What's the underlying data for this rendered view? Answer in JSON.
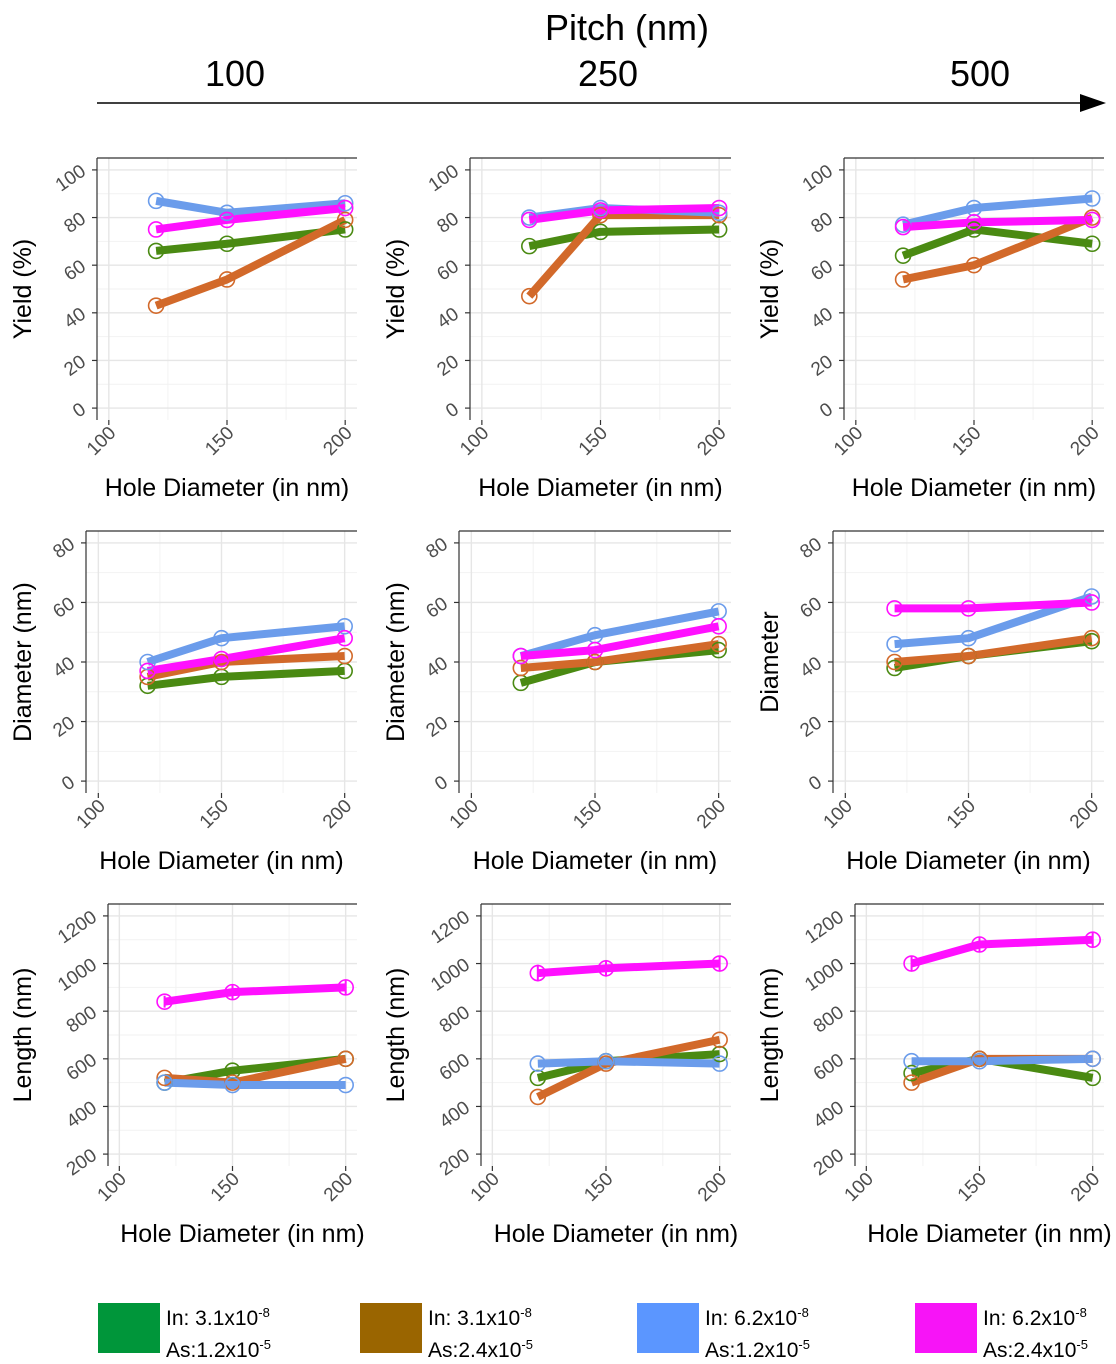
{
  "header": {
    "title": "Pitch (nm)",
    "pitches": [
      "100",
      "250",
      "500"
    ]
  },
  "colors": {
    "green": "#4a8a12",
    "orange": "#d2692a",
    "blue": "#6b9ceb",
    "magenta": "#ff10ff",
    "legend_green": "#00963a",
    "legend_orange": "#9a6500",
    "legend_blue": "#5b96ff",
    "legend_magenta": "#f714f7"
  },
  "legend": [
    {
      "in_base": "In: 3.1x10",
      "in_exp": "-8",
      "as_base": "As:1.2x10",
      "as_exp": "-5",
      "color": "#00963a"
    },
    {
      "in_base": "In: 3.1x10",
      "in_exp": "-8",
      "as_base": "As:2.4x10",
      "as_exp": "-5",
      "color": "#9a6500"
    },
    {
      "in_base": "In: 6.2x10",
      "in_exp": "-8",
      "as_base": "As:1.2x10",
      "as_exp": "-5",
      "color": "#5b96ff"
    },
    {
      "in_base": "In: 6.2x10",
      "in_exp": "-8",
      "as_base": "As:2.4x10",
      "as_exp": "-5",
      "color": "#f714f7"
    }
  ],
  "chart_data": [
    {
      "type": "line",
      "row": "yield",
      "pitch": "100",
      "xlabel": "Hole Diameter (in nm)",
      "ylabel": "Yield (%)",
      "x": [
        120,
        150,
        200
      ],
      "xticks": [
        100,
        150,
        200
      ],
      "xlim": [
        95,
        205
      ],
      "yticks": [
        0,
        20,
        40,
        60,
        80,
        100
      ],
      "ylim": [
        -5,
        105
      ],
      "series": [
        {
          "color": "#4a8a12",
          "values": [
            66,
            69,
            75
          ]
        },
        {
          "color": "#d2692a",
          "values": [
            43,
            54,
            79
          ]
        },
        {
          "color": "#6b9ceb",
          "values": [
            87,
            82,
            86
          ]
        },
        {
          "color": "#ff10ff",
          "values": [
            75,
            79,
            84
          ]
        }
      ]
    },
    {
      "type": "line",
      "row": "yield",
      "pitch": "250",
      "xlabel": "Hole Diameter (in nm)",
      "ylabel": "Yield (%)",
      "x": [
        120,
        150,
        200
      ],
      "xticks": [
        100,
        150,
        200
      ],
      "xlim": [
        95,
        205
      ],
      "yticks": [
        0,
        20,
        40,
        60,
        80,
        100
      ],
      "ylim": [
        -5,
        105
      ],
      "series": [
        {
          "color": "#4a8a12",
          "values": [
            68,
            74,
            75
          ]
        },
        {
          "color": "#d2692a",
          "values": [
            47,
            81,
            81
          ]
        },
        {
          "color": "#6b9ceb",
          "values": [
            80,
            84,
            82
          ]
        },
        {
          "color": "#ff10ff",
          "values": [
            79,
            83,
            84
          ]
        }
      ]
    },
    {
      "type": "line",
      "row": "yield",
      "pitch": "500",
      "xlabel": "Hole Diameter (in nm)",
      "ylabel": "Yield (%)",
      "x": [
        120,
        150,
        200
      ],
      "xticks": [
        100,
        150,
        200
      ],
      "xlim": [
        95,
        205
      ],
      "yticks": [
        0,
        20,
        40,
        60,
        80,
        100
      ],
      "ylim": [
        -5,
        105
      ],
      "series": [
        {
          "color": "#4a8a12",
          "values": [
            64,
            75,
            69
          ]
        },
        {
          "color": "#d2692a",
          "values": [
            54,
            60,
            80
          ]
        },
        {
          "color": "#6b9ceb",
          "values": [
            77,
            84,
            88
          ]
        },
        {
          "color": "#ff10ff",
          "values": [
            76,
            78,
            79
          ]
        }
      ]
    },
    {
      "type": "line",
      "row": "diameter",
      "pitch": "100",
      "xlabel": "Hole Diameter (in nm)",
      "ylabel": "Diameter (nm)",
      "x": [
        120,
        150,
        200
      ],
      "xticks": [
        100,
        150,
        200
      ],
      "xlim": [
        95,
        205
      ],
      "yticks": [
        0,
        20,
        40,
        60,
        80
      ],
      "ylim": [
        -4,
        84
      ],
      "series": [
        {
          "color": "#4a8a12",
          "values": [
            32,
            35,
            37
          ]
        },
        {
          "color": "#d2692a",
          "values": [
            35,
            40,
            42
          ]
        },
        {
          "color": "#6b9ceb",
          "values": [
            40,
            48,
            52
          ]
        },
        {
          "color": "#ff10ff",
          "values": [
            37,
            41,
            48
          ]
        }
      ]
    },
    {
      "type": "line",
      "row": "diameter",
      "pitch": "250",
      "xlabel": "Hole Diameter (in nm)",
      "ylabel": "Diameter (nm)",
      "x": [
        120,
        150,
        200
      ],
      "xticks": [
        100,
        150,
        200
      ],
      "xlim": [
        95,
        205
      ],
      "yticks": [
        0,
        20,
        40,
        60,
        80
      ],
      "ylim": [
        -4,
        84
      ],
      "series": [
        {
          "color": "#4a8a12",
          "values": [
            33,
            40,
            44
          ]
        },
        {
          "color": "#d2692a",
          "values": [
            38,
            40,
            46
          ]
        },
        {
          "color": "#6b9ceb",
          "values": [
            42,
            49,
            57
          ]
        },
        {
          "color": "#ff10ff",
          "values": [
            42,
            44,
            52
          ]
        }
      ]
    },
    {
      "type": "line",
      "row": "diameter",
      "pitch": "500",
      "xlabel": "Hole Diameter (in nm)",
      "ylabel": "Diameter",
      "x": [
        120,
        150,
        200
      ],
      "xticks": [
        100,
        150,
        200
      ],
      "xlim": [
        95,
        205
      ],
      "yticks": [
        0,
        20,
        40,
        60,
        80
      ],
      "ylim": [
        -4,
        84
      ],
      "series": [
        {
          "color": "#4a8a12",
          "values": [
            38,
            42,
            47
          ]
        },
        {
          "color": "#d2692a",
          "values": [
            40,
            42,
            48
          ]
        },
        {
          "color": "#6b9ceb",
          "values": [
            46,
            48,
            62
          ]
        },
        {
          "color": "#ff10ff",
          "values": [
            58,
            58,
            60
          ]
        }
      ]
    },
    {
      "type": "line",
      "row": "length",
      "pitch": "100",
      "xlabel": "Hole Diameter (in nm)",
      "ylabel": "Length (nm)",
      "x": [
        120,
        150,
        200
      ],
      "xticks": [
        100,
        150,
        200
      ],
      "xlim": [
        95,
        205
      ],
      "yticks": [
        200,
        400,
        600,
        800,
        1000,
        1200
      ],
      "ylim": [
        150,
        1250
      ],
      "series": [
        {
          "color": "#4a8a12",
          "values": [
            500,
            550,
            600
          ]
        },
        {
          "color": "#d2692a",
          "values": [
            520,
            500,
            600
          ]
        },
        {
          "color": "#6b9ceb",
          "values": [
            500,
            490,
            490
          ]
        },
        {
          "color": "#ff10ff",
          "values": [
            840,
            880,
            900
          ],
          "errors": [
            25,
            30,
            30
          ]
        }
      ]
    },
    {
      "type": "line",
      "row": "length",
      "pitch": "250",
      "xlabel": "Hole Diameter (in nm)",
      "ylabel": "Length (nm)",
      "x": [
        120,
        150,
        200
      ],
      "xticks": [
        100,
        150,
        200
      ],
      "xlim": [
        95,
        205
      ],
      "yticks": [
        200,
        400,
        600,
        800,
        1000,
        1200
      ],
      "ylim": [
        150,
        1250
      ],
      "series": [
        {
          "color": "#4a8a12",
          "values": [
            520,
            590,
            620
          ]
        },
        {
          "color": "#d2692a",
          "values": [
            440,
            580,
            680
          ]
        },
        {
          "color": "#6b9ceb",
          "values": [
            580,
            590,
            580
          ]
        },
        {
          "color": "#ff10ff",
          "values": [
            960,
            980,
            1000
          ],
          "errors": [
            35,
            35,
            30
          ]
        }
      ]
    },
    {
      "type": "line",
      "row": "length",
      "pitch": "500",
      "xlabel": "Hole Diameter (in nm)",
      "ylabel": "Length (nm)",
      "x": [
        120,
        150,
        200
      ],
      "xticks": [
        100,
        150,
        200
      ],
      "xlim": [
        95,
        205
      ],
      "yticks": [
        200,
        400,
        600,
        800,
        1000,
        1200
      ],
      "ylim": [
        150,
        1250
      ],
      "series": [
        {
          "color": "#4a8a12",
          "values": [
            540,
            600,
            520
          ]
        },
        {
          "color": "#d2692a",
          "values": [
            500,
            600,
            600
          ]
        },
        {
          "color": "#6b9ceb",
          "values": [
            590,
            590,
            600
          ]
        },
        {
          "color": "#ff10ff",
          "values": [
            1000,
            1080,
            1100
          ],
          "errors": [
            30,
            30,
            30
          ]
        }
      ]
    }
  ]
}
